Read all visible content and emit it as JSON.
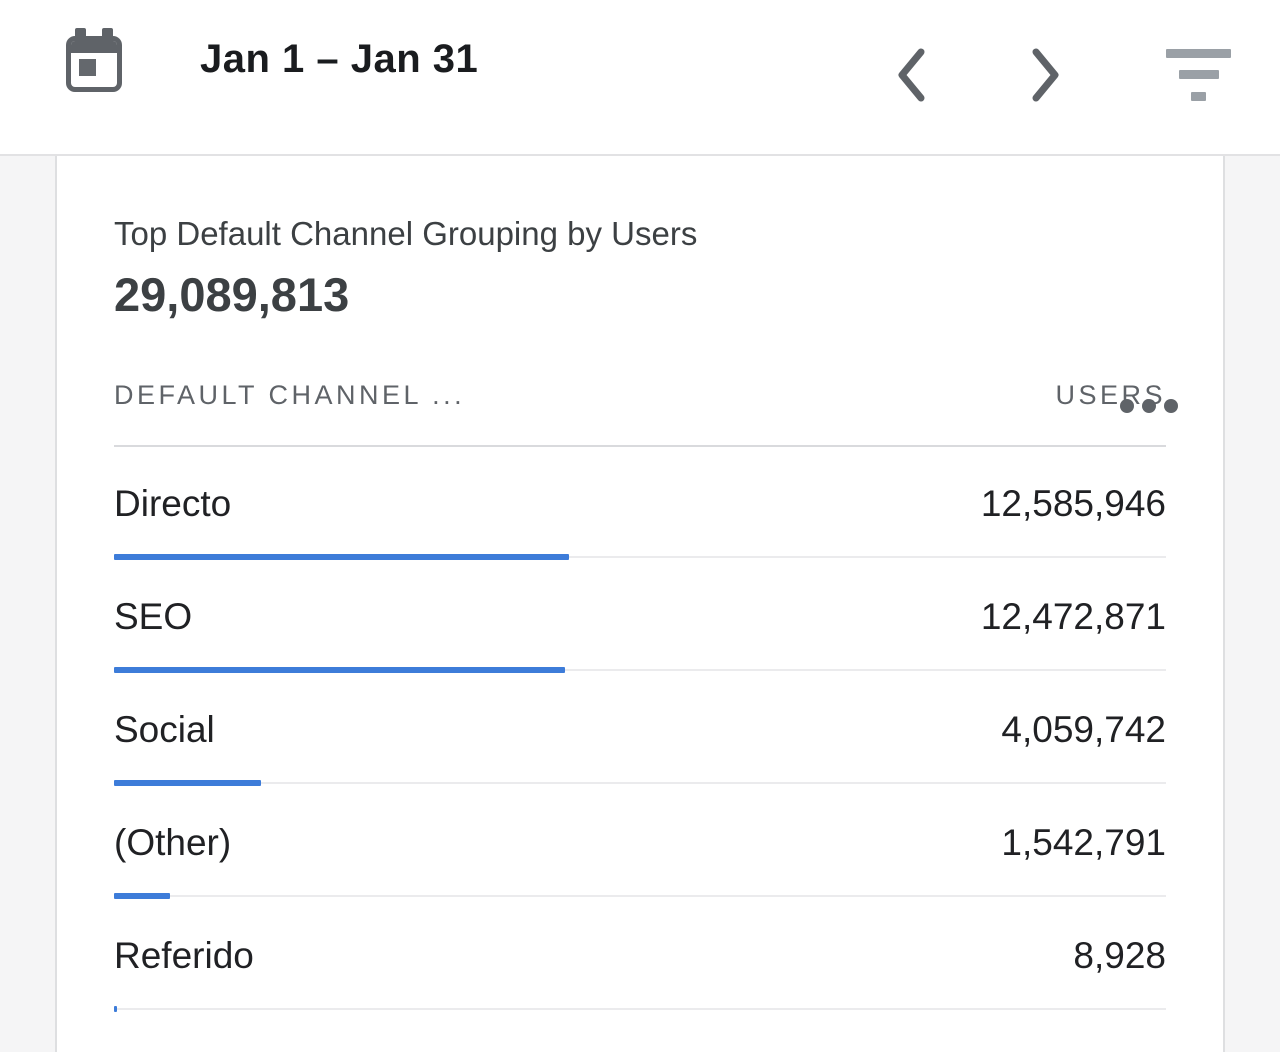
{
  "header": {
    "date_range": "Jan 1 – Jan 31",
    "calendar_icon": "calendar-date-range",
    "prev_icon": "chevron-left",
    "next_icon": "chevron-right",
    "filter_icon": "filter-list"
  },
  "card": {
    "title": "Top Default Channel Grouping by Users",
    "total_users": "29,089,813",
    "menu_icon": "more-horizontal",
    "table": {
      "dimension_header": "DEFAULT CHANNEL ...",
      "metric_header": "USERS",
      "total_value": 29089813,
      "rows": [
        {
          "channel": "Directo",
          "users": "12,585,946",
          "value": 12585946
        },
        {
          "channel": "SEO",
          "users": "12,472,871",
          "value": 12472871
        },
        {
          "channel": "Social",
          "users": "4,059,742",
          "value": 4059742
        },
        {
          "channel": "(Other)",
          "users": "1,542,791",
          "value": 1542791
        },
        {
          "channel": "Referido",
          "users": "8,928",
          "value": 8928
        }
      ]
    }
  },
  "colors": {
    "accent_blue": "#3d7cd9",
    "bar_track": "#ebebed",
    "text_primary": "#202124",
    "text_secondary": "#5f6368",
    "background": "#f5f5f6",
    "divider": "#d9dadd",
    "icon_gray": "#5f6368"
  },
  "chart_data": {
    "type": "bar",
    "orientation": "horizontal",
    "title": "Top Default Channel Grouping by Users",
    "value_label": "Users",
    "categories": [
      "Directo",
      "SEO",
      "Social",
      "(Other)",
      "Referido"
    ],
    "values": [
      12585946,
      12472871,
      4059742,
      1542791,
      8928
    ],
    "total": 29089813,
    "bar_scale": "fraction of total users"
  }
}
